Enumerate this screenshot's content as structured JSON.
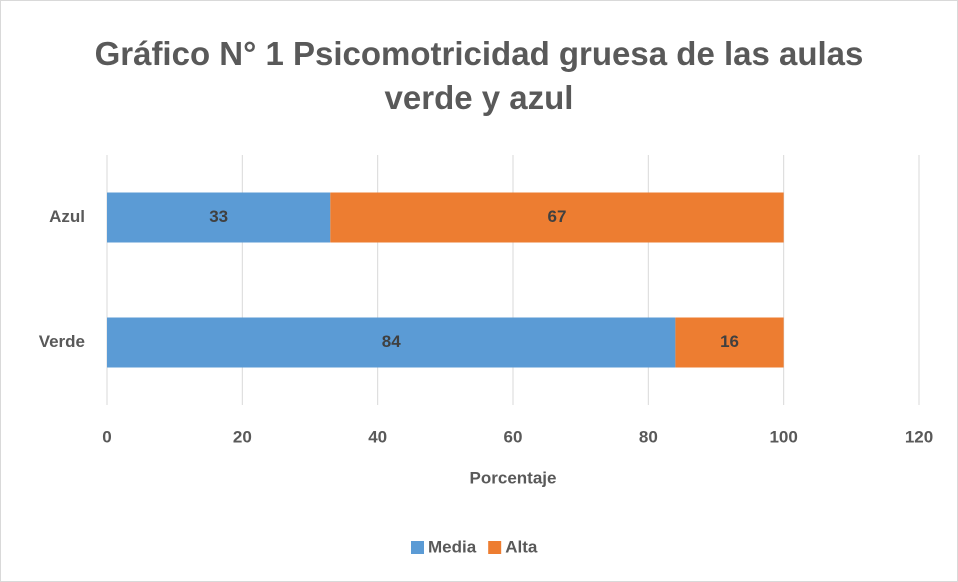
{
  "chart_data": {
    "type": "stacked-bar-horizontal",
    "title": "Gráfico N° 1 Psicomotricidad gruesa de las aulas verde y azul",
    "categories": [
      "Verde",
      "Azul"
    ],
    "series": [
      {
        "name": "Media",
        "color": "#5b9bd5",
        "values": [
          84,
          33
        ]
      },
      {
        "name": "Alta",
        "color": "#ed7d31",
        "values": [
          16,
          67
        ]
      }
    ],
    "xlabel": "Porcentaje",
    "xlim": [
      0,
      120
    ],
    "xticks": [
      0,
      20,
      40,
      60,
      80,
      100,
      120
    ],
    "grid": true,
    "legend": "bottom"
  }
}
